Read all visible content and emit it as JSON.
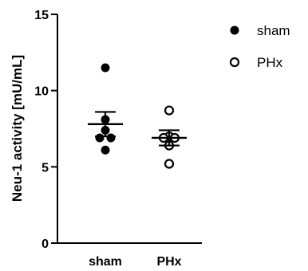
{
  "chart_data": {
    "type": "scatter",
    "ylabel": "Neu-1 activity [mU/mL]",
    "ylim": [
      0,
      15
    ],
    "yticks": [
      0,
      5,
      10,
      15
    ],
    "ytick_labels": [
      "0",
      "5",
      "10",
      "15"
    ],
    "categories": [
      "sham",
      "PHx"
    ],
    "legend_position": "top-right",
    "series": [
      {
        "name": "sham",
        "marker": "filled-circle",
        "color": "#000000",
        "values": [
          11.5,
          8.1,
          7.4,
          6.9,
          6.9,
          6.1
        ],
        "mean": 7.8,
        "sem_upper": 8.6,
        "sem_lower": 7.0
      },
      {
        "name": "PHx",
        "marker": "open-circle",
        "color": "#000000",
        "values": [
          8.7,
          7.0,
          6.9,
          6.9,
          6.4,
          5.2
        ],
        "mean": 6.9,
        "sem_upper": 7.4,
        "sem_lower": 6.4
      }
    ]
  }
}
